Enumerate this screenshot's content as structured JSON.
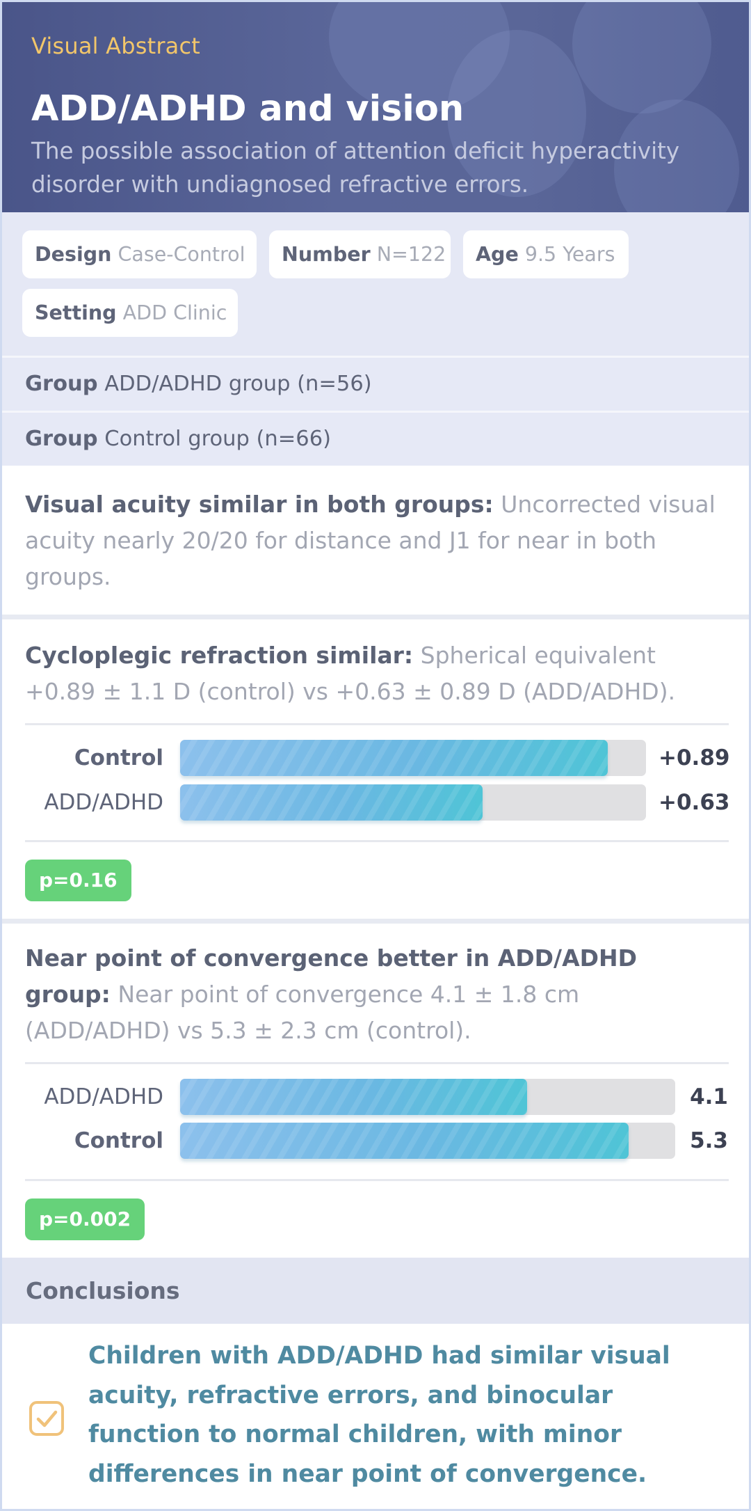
{
  "header": {
    "eyebrow": "Visual Abstract",
    "title": "ADD/ADHD and vision",
    "subtitle": "The possible association of attention deficit hyperactivity disorder with undiagnosed refractive errors."
  },
  "info": {
    "design_label": "Design",
    "design_value": "Case-Control",
    "number_label": "Number",
    "number_value": "N=122",
    "age_label": "Age",
    "age_value": "9.5 Years",
    "setting_label": "Setting",
    "setting_value": "ADD Clinic"
  },
  "groups": [
    {
      "label": "Group",
      "value": "ADD/ADHD group (n=56)"
    },
    {
      "label": "Group",
      "value": "Control group (n=66)"
    }
  ],
  "findings": {
    "acuity": {
      "heading": "Visual acuity similar in both groups:",
      "text": "Uncorrected visual acuity nearly 20/20 for distance and J1 for near in both groups."
    },
    "refraction": {
      "heading": "Cycloplegic refraction similar:",
      "text": "Spherical equivalent +0.89 ± 1.1 D (control) vs +0.63 ± 0.89 D (ADD/ADHD).",
      "p_value": "p=0.16"
    },
    "convergence": {
      "heading": "Near point of convergence better in ADD/ADHD group:",
      "text": "Near point of convergence 4.1 ± 1.8 cm (ADD/ADHD) vs 5.3 ± 2.3 cm (control).",
      "p_value": "p=0.002"
    }
  },
  "chart_data": [
    {
      "type": "bar",
      "orientation": "horizontal",
      "categories": [
        "Control",
        "ADD/ADHD"
      ],
      "values": [
        0.89,
        0.63
      ],
      "value_labels": [
        "+0.89",
        "+0.63"
      ],
      "xlim": [
        0,
        0.97
      ]
    },
    {
      "type": "bar",
      "orientation": "horizontal",
      "categories": [
        "ADD/ADHD",
        "Control"
      ],
      "values": [
        4.1,
        5.3
      ],
      "value_labels": [
        "4.1",
        "5.3"
      ],
      "xlim": [
        0,
        5.85
      ]
    }
  ],
  "conclusions": {
    "heading": "Conclusions",
    "text": "Children with ADD/ADHD had similar visual acuity, refractive errors, and binocular function to normal children, with minor differences in near point of convergence.",
    "icon": "checkbox-icon",
    "icon_color": "#f0c27a"
  },
  "colors": {
    "header_bg": "#535f93",
    "accent_yellow": "#f2c66a",
    "bar_fill": "#5cbcdc",
    "p_badge": "#66d27a",
    "conclusion_text": "#4f8aa1"
  }
}
